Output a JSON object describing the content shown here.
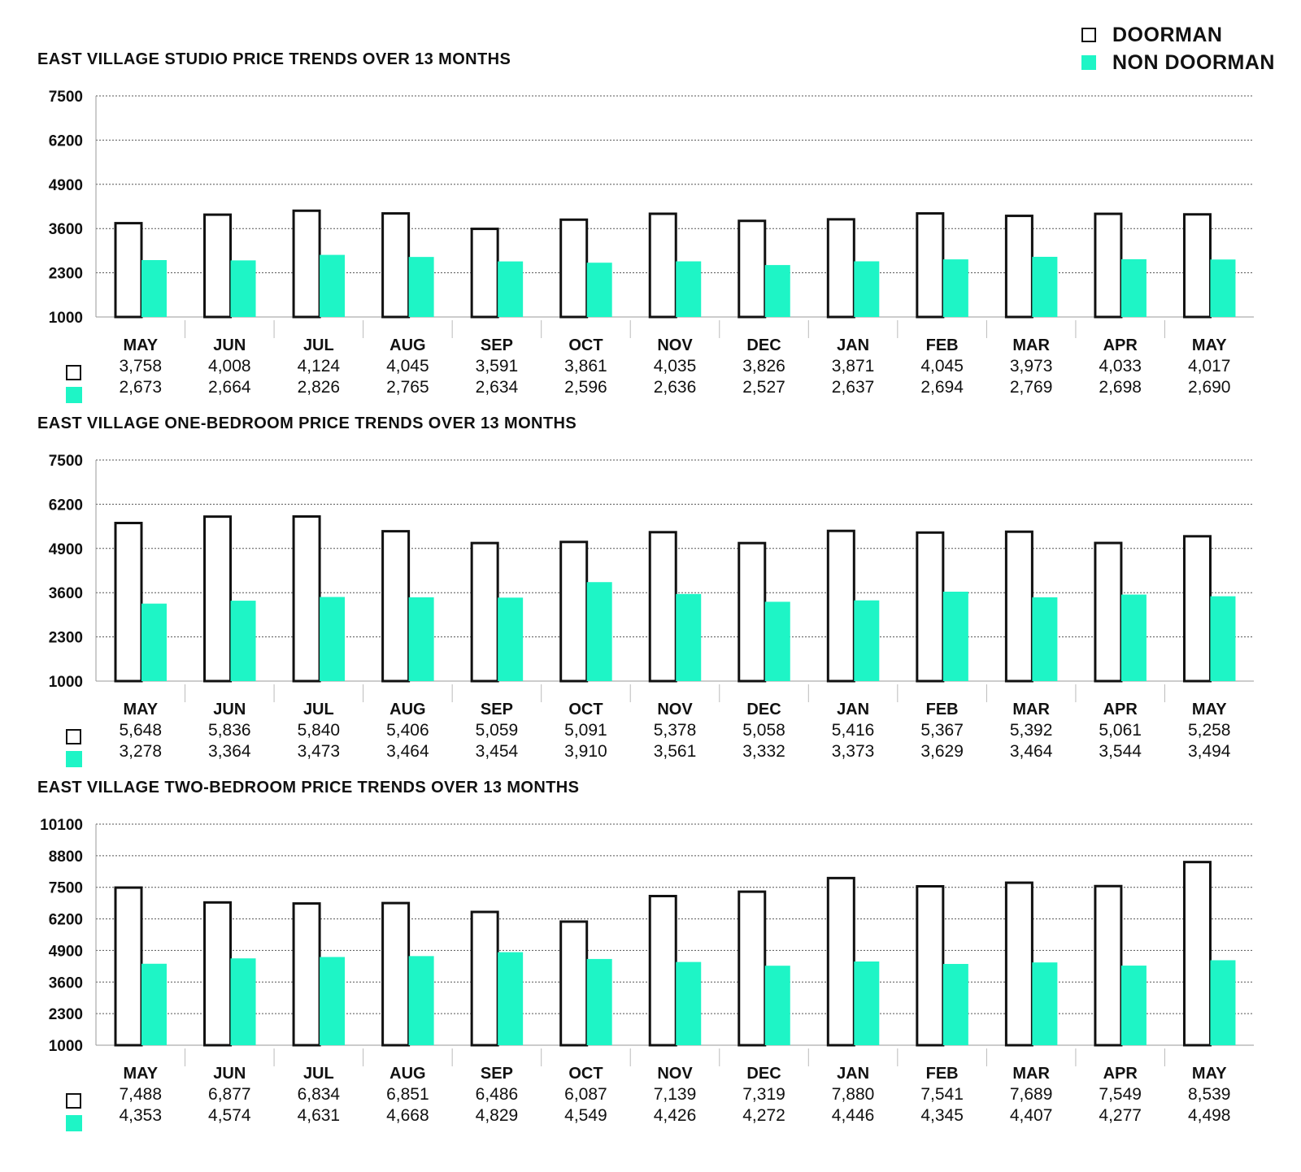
{
  "legend": {
    "doorman_label": "DOORMAN",
    "nondoorman_label": "NON DOORMAN",
    "doorman_color": "#ffffff",
    "doorman_stroke": "#111111",
    "nondoorman_color": "#1ef5c6"
  },
  "chart_data": [
    {
      "type": "bar",
      "title": "EAST VILLAGE STUDIO PRICE TRENDS OVER 13 MONTHS",
      "categories": [
        "MAY",
        "JUN",
        "JUL",
        "AUG",
        "SEP",
        "OCT",
        "NOV",
        "DEC",
        "JAN",
        "FEB",
        "MAR",
        "APR",
        "MAY"
      ],
      "yticks": [
        1000,
        2300,
        3600,
        4900,
        6200,
        7500
      ],
      "ylim": [
        1000,
        7500
      ],
      "grid": true,
      "series": [
        {
          "name": "DOORMAN",
          "values": [
            3758,
            4008,
            4124,
            4045,
            3591,
            3861,
            4035,
            3826,
            3871,
            4045,
            3973,
            4033,
            4017
          ],
          "labels": [
            "3,758",
            "4,008",
            "4,124",
            "4,045",
            "3,591",
            "3,861",
            "4,035",
            "3,826",
            "3,871",
            "4,045",
            "3,973",
            "4,033",
            "4,017"
          ]
        },
        {
          "name": "NON DOORMAN",
          "values": [
            2673,
            2664,
            2826,
            2765,
            2634,
            2596,
            2636,
            2527,
            2637,
            2694,
            2769,
            2698,
            2690
          ],
          "labels": [
            "2,673",
            "2,664",
            "2,826",
            "2,765",
            "2,634",
            "2,596",
            "2,636",
            "2,527",
            "2,637",
            "2,694",
            "2,769",
            "2,698",
            "2,690"
          ]
        }
      ]
    },
    {
      "type": "bar",
      "title": "EAST VILLAGE ONE-BEDROOM PRICE TRENDS OVER 13 MONTHS",
      "categories": [
        "MAY",
        "JUN",
        "JUL",
        "AUG",
        "SEP",
        "OCT",
        "NOV",
        "DEC",
        "JAN",
        "FEB",
        "MAR",
        "APR",
        "MAY"
      ],
      "yticks": [
        1000,
        2300,
        3600,
        4900,
        6200,
        7500
      ],
      "ylim": [
        1000,
        7500
      ],
      "grid": true,
      "series": [
        {
          "name": "DOORMAN",
          "values": [
            5648,
            5836,
            5840,
            5406,
            5059,
            5091,
            5378,
            5058,
            5416,
            5367,
            5392,
            5061,
            5258
          ],
          "labels": [
            "5,648",
            "5,836",
            "5,840",
            "5,406",
            "5,059",
            "5,091",
            "5,378",
            "5,058",
            "5,416",
            "5,367",
            "5,392",
            "5,061",
            "5,258"
          ]
        },
        {
          "name": "NON DOORMAN",
          "values": [
            3278,
            3364,
            3473,
            3464,
            3454,
            3910,
            3561,
            3332,
            3373,
            3629,
            3464,
            3544,
            3494
          ],
          "labels": [
            "3,278",
            "3,364",
            "3,473",
            "3,464",
            "3,454",
            "3,910",
            "3,561",
            "3,332",
            "3,373",
            "3,629",
            "3,464",
            "3,544",
            "3,494"
          ]
        }
      ]
    },
    {
      "type": "bar",
      "title": "EAST VILLAGE TWO-BEDROOM PRICE TRENDS OVER 13 MONTHS",
      "categories": [
        "MAY",
        "JUN",
        "JUL",
        "AUG",
        "SEP",
        "OCT",
        "NOV",
        "DEC",
        "JAN",
        "FEB",
        "MAR",
        "APR",
        "MAY"
      ],
      "yticks": [
        1000,
        2300,
        3600,
        4900,
        6200,
        7500,
        8800,
        10100
      ],
      "ylim": [
        1000,
        10100
      ],
      "grid": true,
      "series": [
        {
          "name": "DOORMAN",
          "values": [
            7488,
            6877,
            6834,
            6851,
            6486,
            6087,
            7139,
            7319,
            7880,
            7541,
            7689,
            7549,
            8539
          ],
          "labels": [
            "7,488",
            "6,877",
            "6,834",
            "6,851",
            "6,486",
            "6,087",
            "7,139",
            "7,319",
            "7,880",
            "7,541",
            "7,689",
            "7,549",
            "8,539"
          ]
        },
        {
          "name": "NON DOORMAN",
          "values": [
            4353,
            4574,
            4631,
            4668,
            4829,
            4549,
            4426,
            4272,
            4446,
            4345,
            4407,
            4277,
            4498
          ],
          "labels": [
            "4,353",
            "4,574",
            "4,631",
            "4,668",
            "4,829",
            "4,549",
            "4,426",
            "4,272",
            "4,446",
            "4,345",
            "4,407",
            "4,277",
            "4,498"
          ]
        }
      ]
    }
  ]
}
